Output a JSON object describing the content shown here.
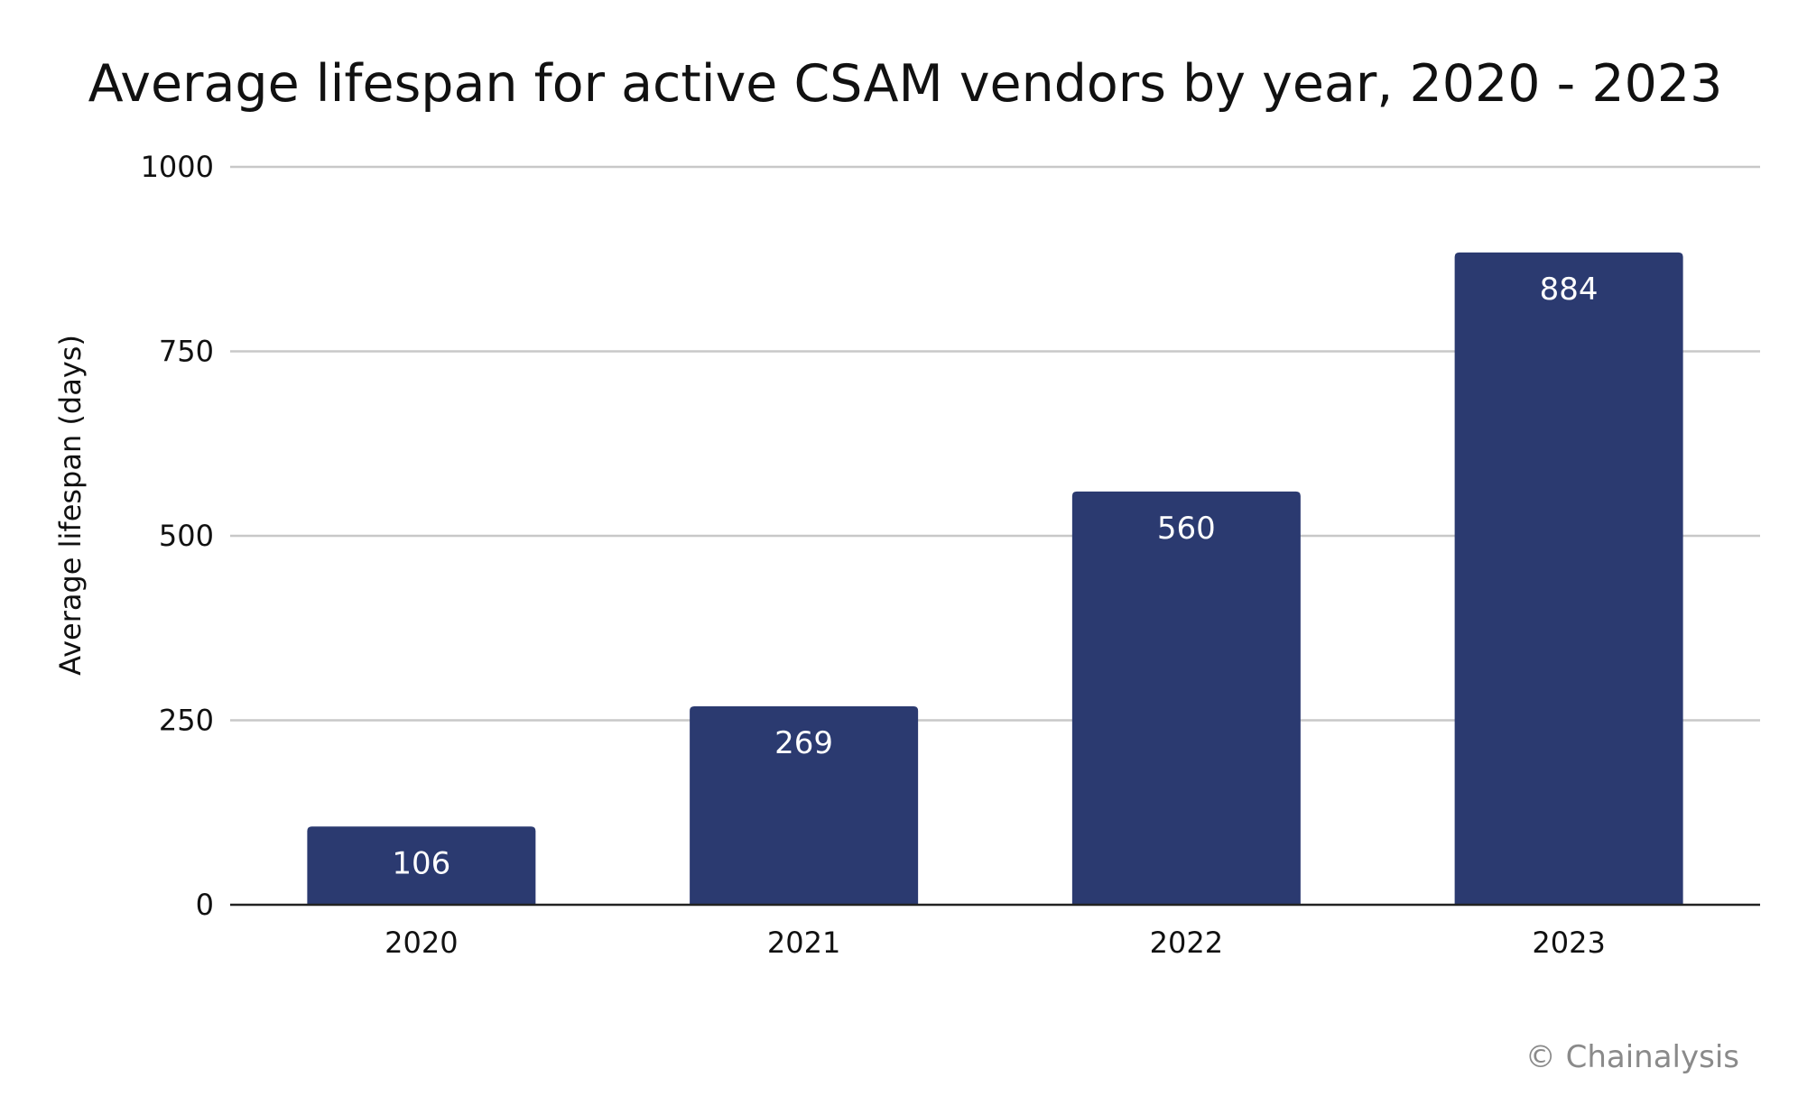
{
  "chart_data": {
    "type": "bar",
    "title": "Average lifespan for active CSAM vendors by year, 2020 - 2023",
    "xlabel": "",
    "ylabel": "Average lifespan (days)",
    "categories": [
      "2020",
      "2021",
      "2022",
      "2023"
    ],
    "values": [
      106,
      269,
      560,
      884
    ],
    "data_labels": [
      "106",
      "269",
      "560",
      "884"
    ],
    "ylim": [
      0,
      1000
    ],
    "yticks": [
      0,
      250,
      500,
      750,
      1000
    ],
    "ytick_labels": [
      "0",
      "250",
      "500",
      "750",
      "1000"
    ],
    "grid": true,
    "legend": "none",
    "bar_color": "#2b3a70",
    "grid_color": "#c8c8c8"
  },
  "footer": {
    "credit": "© Chainalysis"
  }
}
